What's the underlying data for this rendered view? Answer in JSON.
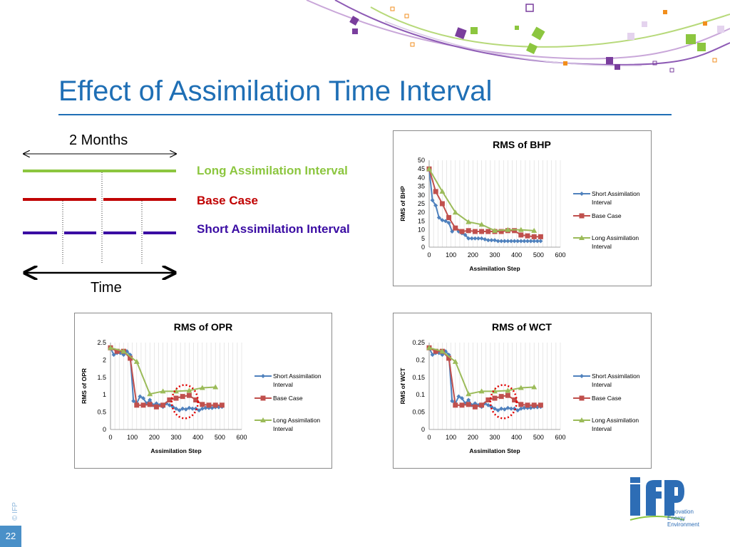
{
  "slide": {
    "title": "Effect of Assimilation Time Interval",
    "page_number": "22",
    "copyright": "© IFP"
  },
  "diagram": {
    "top_label": "2 Months",
    "bottom_label": "Time",
    "legend": [
      {
        "label": "Long Assimilation Interval",
        "color": "#8CC63F"
      },
      {
        "label": "Base Case",
        "color": "#C00000"
      },
      {
        "label": "Short Assimilation Interval",
        "color": "#3A0CA3"
      }
    ]
  },
  "logo": {
    "name": "ifp",
    "lines": [
      "Innovation",
      "Energy",
      "Environment"
    ]
  },
  "colors": {
    "title": "#1F6FB5",
    "short": "#4F81BD",
    "base": "#C0504D",
    "long": "#9BBB59"
  },
  "chart_data": [
    {
      "type": "line",
      "title": "RMS of BHP",
      "xlabel": "Assimilation Step",
      "ylabel": "RMS of BHP",
      "xlim": [
        0,
        600
      ],
      "ylim": [
        0,
        50
      ],
      "xticks": [
        0,
        100,
        200,
        300,
        400,
        500,
        600
      ],
      "yticks": [
        0,
        5,
        10,
        15,
        20,
        25,
        30,
        35,
        40,
        45,
        50
      ],
      "ytick_labels": [
        "0",
        "5",
        "10",
        "15",
        "20",
        "25",
        "30",
        "35",
        "40",
        "45",
        "50"
      ],
      "grid": "vertical",
      "legend": "right",
      "series": [
        {
          "name": "Short Assimilation Interval",
          "color": "#4F81BD",
          "marker": "diamond",
          "x": [
            0,
            15,
            30,
            45,
            60,
            75,
            90,
            105,
            120,
            135,
            150,
            165,
            180,
            195,
            210,
            225,
            240,
            255,
            270,
            285,
            300,
            315,
            330,
            345,
            360,
            375,
            390,
            405,
            420,
            435,
            450,
            465,
            480,
            495,
            510
          ],
          "y": [
            45,
            27,
            24,
            17,
            15.5,
            15,
            14,
            9,
            11,
            9,
            8,
            7,
            5,
            5,
            5,
            5,
            5,
            4.5,
            4,
            4,
            4,
            3.5,
            3.5,
            3.5,
            3.5,
            3.5,
            3.5,
            3.5,
            3.5,
            3.5,
            3.5,
            3.5,
            3.5,
            3.5,
            3.5
          ]
        },
        {
          "name": "Base Case",
          "color": "#C0504D",
          "marker": "square",
          "x": [
            0,
            30,
            60,
            90,
            120,
            150,
            180,
            210,
            240,
            270,
            300,
            330,
            360,
            390,
            420,
            450,
            480,
            510
          ],
          "y": [
            45,
            32,
            25,
            17,
            11,
            9,
            9.5,
            9,
            9,
            9,
            9,
            9,
            9.5,
            9.5,
            7,
            6.5,
            6,
            6
          ]
        },
        {
          "name": "Long Assimilation Interval",
          "color": "#9BBB59",
          "marker": "triangle",
          "x": [
            0,
            60,
            120,
            180,
            240,
            300,
            360,
            420,
            480
          ],
          "y": [
            45,
            32,
            20,
            14.5,
            13,
            9.5,
            10,
            10,
            9.5
          ]
        }
      ]
    },
    {
      "type": "line",
      "title": "RMS of OPR",
      "xlabel": "Assimilation Step",
      "ylabel": "RMS of OPR",
      "xlim": [
        0,
        600
      ],
      "ylim": [
        0,
        2.5
      ],
      "xticks": [
        0,
        100,
        200,
        300,
        400,
        500,
        600
      ],
      "yticks": [
        0,
        0.5,
        1,
        1.5,
        2,
        2.5
      ],
      "ytick_labels": [
        "0",
        "0.5",
        "1",
        "1.5",
        "2",
        "2.5"
      ],
      "grid": "vertical",
      "legend": "right",
      "highlight": {
        "cx": 340,
        "cy": 0.8,
        "rx": 60,
        "ry": 0.48,
        "color": "#E00000"
      },
      "series": [
        {
          "name": "Short Assimilation Interval",
          "color": "#4F81BD",
          "marker": "diamond",
          "x": [
            0,
            15,
            30,
            45,
            60,
            75,
            90,
            105,
            120,
            135,
            150,
            165,
            180,
            195,
            210,
            225,
            240,
            255,
            270,
            285,
            300,
            315,
            330,
            345,
            360,
            375,
            390,
            405,
            420,
            435,
            450,
            465,
            480,
            495,
            510
          ],
          "y": [
            2.35,
            2.15,
            2.2,
            2.2,
            2.15,
            2.25,
            2.15,
            0.82,
            0.75,
            0.95,
            0.9,
            0.75,
            0.85,
            0.7,
            0.75,
            0.7,
            0.65,
            0.75,
            0.7,
            0.65,
            0.6,
            0.55,
            0.6,
            0.58,
            0.62,
            0.6,
            0.6,
            0.55,
            0.6,
            0.62,
            0.62,
            0.62,
            0.64,
            0.64,
            0.65
          ]
        },
        {
          "name": "Base Case",
          "color": "#C0504D",
          "marker": "square",
          "x": [
            0,
            30,
            60,
            90,
            120,
            150,
            180,
            210,
            240,
            270,
            300,
            330,
            360,
            390,
            420,
            450,
            480,
            510
          ],
          "y": [
            2.35,
            2.25,
            2.25,
            2.05,
            0.7,
            0.7,
            0.72,
            0.65,
            0.7,
            0.85,
            0.9,
            0.95,
            0.98,
            0.85,
            0.72,
            0.7,
            0.7,
            0.7
          ]
        },
        {
          "name": "Long Assimilation Interval",
          "color": "#9BBB59",
          "marker": "triangle",
          "x": [
            0,
            60,
            120,
            180,
            240,
            300,
            360,
            420,
            480
          ],
          "y": [
            2.35,
            2.25,
            1.95,
            1.02,
            1.1,
            1.1,
            1.12,
            1.2,
            1.22
          ]
        }
      ]
    },
    {
      "type": "line",
      "title": "RMS of WCT",
      "xlabel": "Assimilation Step",
      "ylabel": "RMS of WCT",
      "xlim": [
        0,
        600
      ],
      "ylim": [
        0,
        0.25
      ],
      "xticks": [
        0,
        100,
        200,
        300,
        400,
        500,
        600
      ],
      "yticks": [
        0,
        0.05,
        0.1,
        0.15,
        0.2,
        0.25
      ],
      "ytick_labels": [
        "0",
        "0.05",
        "0.1",
        "0.15",
        "0.2",
        "0.25"
      ],
      "grid": "vertical",
      "legend": "right",
      "highlight": {
        "cx": 340,
        "cy": 0.08,
        "rx": 60,
        "ry": 0.048,
        "color": "#E00000"
      },
      "series": [
        {
          "name": "Short Assimilation Interval",
          "color": "#4F81BD",
          "marker": "diamond",
          "x": [
            0,
            15,
            30,
            45,
            60,
            75,
            90,
            105,
            120,
            135,
            150,
            165,
            180,
            195,
            210,
            225,
            240,
            255,
            270,
            285,
            300,
            315,
            330,
            345,
            360,
            375,
            390,
            405,
            420,
            435,
            450,
            465,
            480,
            495,
            510
          ],
          "y": [
            0.235,
            0.215,
            0.22,
            0.22,
            0.215,
            0.225,
            0.215,
            0.082,
            0.075,
            0.095,
            0.09,
            0.075,
            0.085,
            0.07,
            0.075,
            0.07,
            0.065,
            0.075,
            0.07,
            0.065,
            0.06,
            0.055,
            0.06,
            0.058,
            0.062,
            0.06,
            0.06,
            0.055,
            0.06,
            0.062,
            0.062,
            0.062,
            0.064,
            0.064,
            0.065
          ]
        },
        {
          "name": "Base Case",
          "color": "#C0504D",
          "marker": "square",
          "x": [
            0,
            30,
            60,
            90,
            120,
            150,
            180,
            210,
            240,
            270,
            300,
            330,
            360,
            390,
            420,
            450,
            480,
            510
          ],
          "y": [
            0.235,
            0.225,
            0.225,
            0.205,
            0.07,
            0.07,
            0.072,
            0.065,
            0.07,
            0.085,
            0.09,
            0.095,
            0.098,
            0.085,
            0.072,
            0.07,
            0.07,
            0.07
          ]
        },
        {
          "name": "Long Assimilation Interval",
          "color": "#9BBB59",
          "marker": "triangle",
          "x": [
            0,
            60,
            120,
            180,
            240,
            300,
            360,
            420,
            480
          ],
          "y": [
            0.235,
            0.225,
            0.195,
            0.102,
            0.11,
            0.11,
            0.112,
            0.12,
            0.122
          ]
        }
      ]
    }
  ]
}
